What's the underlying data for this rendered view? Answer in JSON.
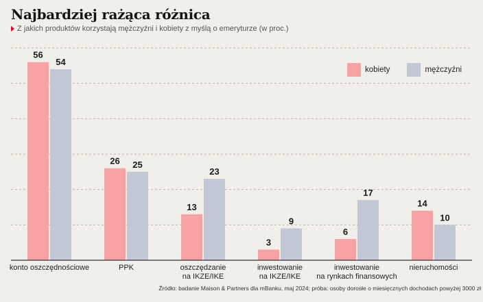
{
  "header": {
    "title": "Najbardziej rażąca różnica",
    "subtitle": "Z jakich produktów korzystają mężczyźni i kobiety z myślą o emeryturze (w proc.)"
  },
  "footer": {
    "source": "Źródło: badanie Maison & Partners dla mBanku, maj 2024; próba: osoby dorosłe o miesięcznych dochodach powyżej 3000 zł"
  },
  "colors": {
    "kobiety": "#f7a3a5",
    "mezczyzni": "#c3c8d6",
    "accent": "#e3001b",
    "background": "#f1efea"
  },
  "chart_data": {
    "type": "bar",
    "categories": [
      [
        "konto oszczędnościowe"
      ],
      [
        "PPK"
      ],
      [
        "oszczędzanie",
        "na IKZE/IKE"
      ],
      [
        "inwestowanie",
        "na IKZE/IKE"
      ],
      [
        "inwestowanie",
        "na rynkach finansowych"
      ],
      [
        "nieruchomości"
      ]
    ],
    "series": [
      {
        "name": "kobiety",
        "values": [
          56,
          26,
          13,
          3,
          6,
          14
        ]
      },
      {
        "name": "mężczyźni",
        "values": [
          54,
          25,
          23,
          9,
          17,
          10
        ]
      }
    ],
    "ylim": [
      0,
      60
    ],
    "gridlines": [
      10,
      20,
      30,
      40,
      50,
      60
    ],
    "grid": true,
    "legend": "top-right"
  }
}
